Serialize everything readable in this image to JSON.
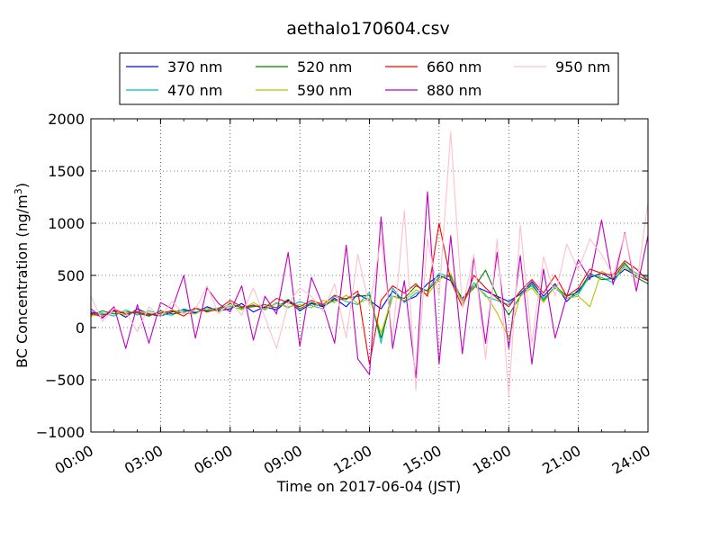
{
  "chart_data": {
    "type": "line",
    "title": "aethalo170604.csv",
    "xlabel": "Time on 2017-06-04 (JST)",
    "ylabel_main": "BC Concentration (ng/m",
    "ylabel_sup": "3",
    "ylabel_end": ")",
    "xlim_hours": [
      0,
      24
    ],
    "ylim": [
      -1000,
      2000
    ],
    "grid": true,
    "legend_position": "top-center",
    "x_ticks": [
      {
        "value": 0,
        "label": "00:00"
      },
      {
        "value": 3,
        "label": "03:00"
      },
      {
        "value": 6,
        "label": "06:00"
      },
      {
        "value": 9,
        "label": "09:00"
      },
      {
        "value": 12,
        "label": "12:00"
      },
      {
        "value": 15,
        "label": "15:00"
      },
      {
        "value": 18,
        "label": "18:00"
      },
      {
        "value": 21,
        "label": "21:00"
      },
      {
        "value": 24,
        "label": "24:00"
      }
    ],
    "y_ticks": [
      {
        "value": -1000,
        "label": "−1000"
      },
      {
        "value": -500,
        "label": "−500"
      },
      {
        "value": 0,
        "label": "0"
      },
      {
        "value": 500,
        "label": "500"
      },
      {
        "value": 1000,
        "label": "1000"
      },
      {
        "value": 1500,
        "label": "1500"
      },
      {
        "value": 2000,
        "label": "2000"
      }
    ],
    "x_hours": [
      0,
      0.5,
      1,
      1.5,
      2,
      2.5,
      3,
      3.5,
      4,
      4.5,
      5,
      5.5,
      6,
      6.5,
      7,
      7.5,
      8,
      8.5,
      9,
      9.5,
      10,
      10.5,
      11,
      11.5,
      12,
      12.5,
      13,
      13.5,
      14,
      14.5,
      15,
      15.5,
      16,
      16.5,
      17,
      17.5,
      18,
      18.5,
      19,
      19.5,
      20,
      20.5,
      21,
      21.5,
      22,
      22.5,
      23,
      23.5,
      24
    ],
    "series": [
      {
        "name": "370 nm",
        "color": "#0000ff",
        "values": [
          150,
          120,
          160,
          100,
          180,
          130,
          110,
          150,
          170,
          140,
          200,
          160,
          180,
          230,
          150,
          200,
          170,
          260,
          160,
          230,
          200,
          280,
          200,
          320,
          260,
          180,
          350,
          250,
          300,
          420,
          500,
          450,
          280,
          400,
          350,
          300,
          250,
          320,
          440,
          300,
          420,
          250,
          360,
          480,
          520,
          460,
          560,
          500,
          450
        ]
      },
      {
        "name": "470 nm",
        "color": "#00bfbf",
        "values": [
          130,
          140,
          110,
          170,
          120,
          160,
          130,
          120,
          180,
          150,
          170,
          190,
          200,
          180,
          220,
          170,
          240,
          190,
          250,
          210,
          180,
          300,
          250,
          220,
          340,
          -150,
          380,
          240,
          330,
          360,
          520,
          480,
          240,
          430,
          300,
          260,
          220,
          340,
          400,
          280,
          380,
          280,
          320,
          500,
          480,
          430,
          600,
          520,
          480
        ]
      },
      {
        "name": "520 nm",
        "color": "#008000",
        "values": [
          120,
          160,
          130,
          150,
          140,
          110,
          160,
          130,
          150,
          180,
          160,
          170,
          230,
          190,
          200,
          220,
          190,
          270,
          180,
          240,
          210,
          260,
          280,
          300,
          310,
          -100,
          300,
          280,
          400,
          350,
          480,
          500,
          260,
          380,
          550,
          300,
          120,
          300,
          420,
          260,
          400,
          300,
          340,
          520,
          460,
          470,
          620,
          480,
          420
        ]
      },
      {
        "name": "590 nm",
        "color": "#bfbf00",
        "values": [
          110,
          130,
          150,
          120,
          160,
          140,
          120,
          170,
          140,
          130,
          190,
          150,
          210,
          170,
          240,
          180,
          230,
          200,
          220,
          190,
          260,
          240,
          310,
          230,
          280,
          -50,
          300,
          260,
          360,
          320,
          460,
          520,
          230,
          400,
          320,
          140,
          -100,
          310,
          380,
          240,
          400,
          280,
          300,
          200,
          540,
          480,
          580,
          500,
          460
        ]
      },
      {
        "name": "660 nm",
        "color": "#ff0000",
        "values": [
          140,
          100,
          170,
          130,
          150,
          120,
          140,
          160,
          110,
          190,
          150,
          180,
          260,
          200,
          210,
          190,
          280,
          240,
          200,
          260,
          220,
          310,
          270,
          350,
          -350,
          260,
          400,
          330,
          420,
          300,
          1000,
          450,
          200,
          500,
          380,
          280,
          200,
          350,
          460,
          330,
          500,
          300,
          380,
          560,
          520,
          500,
          640,
          560,
          450
        ]
      },
      {
        "name": "880 nm",
        "color": "#bf00bf",
        "values": [
          180,
          90,
          200,
          -200,
          220,
          -150,
          240,
          180,
          500,
          -100,
          380,
          230,
          150,
          400,
          -120,
          300,
          130,
          720,
          -180,
          480,
          210,
          -150,
          790,
          -300,
          -450,
          1060,
          -200,
          450,
          -480,
          1300,
          -350,
          880,
          -250,
          670,
          -150,
          720,
          -200,
          690,
          -350,
          560,
          -100,
          300,
          650,
          460,
          1030,
          410,
          910,
          350,
          880
        ]
      },
      {
        "name": "950 nm",
        "color": "#ffc0cb",
        "values": [
          300,
          60,
          180,
          150,
          -40,
          200,
          100,
          250,
          130,
          170,
          400,
          130,
          250,
          120,
          380,
          100,
          -200,
          230,
          380,
          300,
          150,
          420,
          -100,
          700,
          200,
          850,
          -100,
          1120,
          -600,
          850,
          300,
          1870,
          200,
          700,
          -300,
          850,
          -650,
          980,
          -150,
          680,
          300,
          800,
          550,
          850,
          700,
          500,
          900,
          400,
          1200
        ]
      }
    ]
  }
}
